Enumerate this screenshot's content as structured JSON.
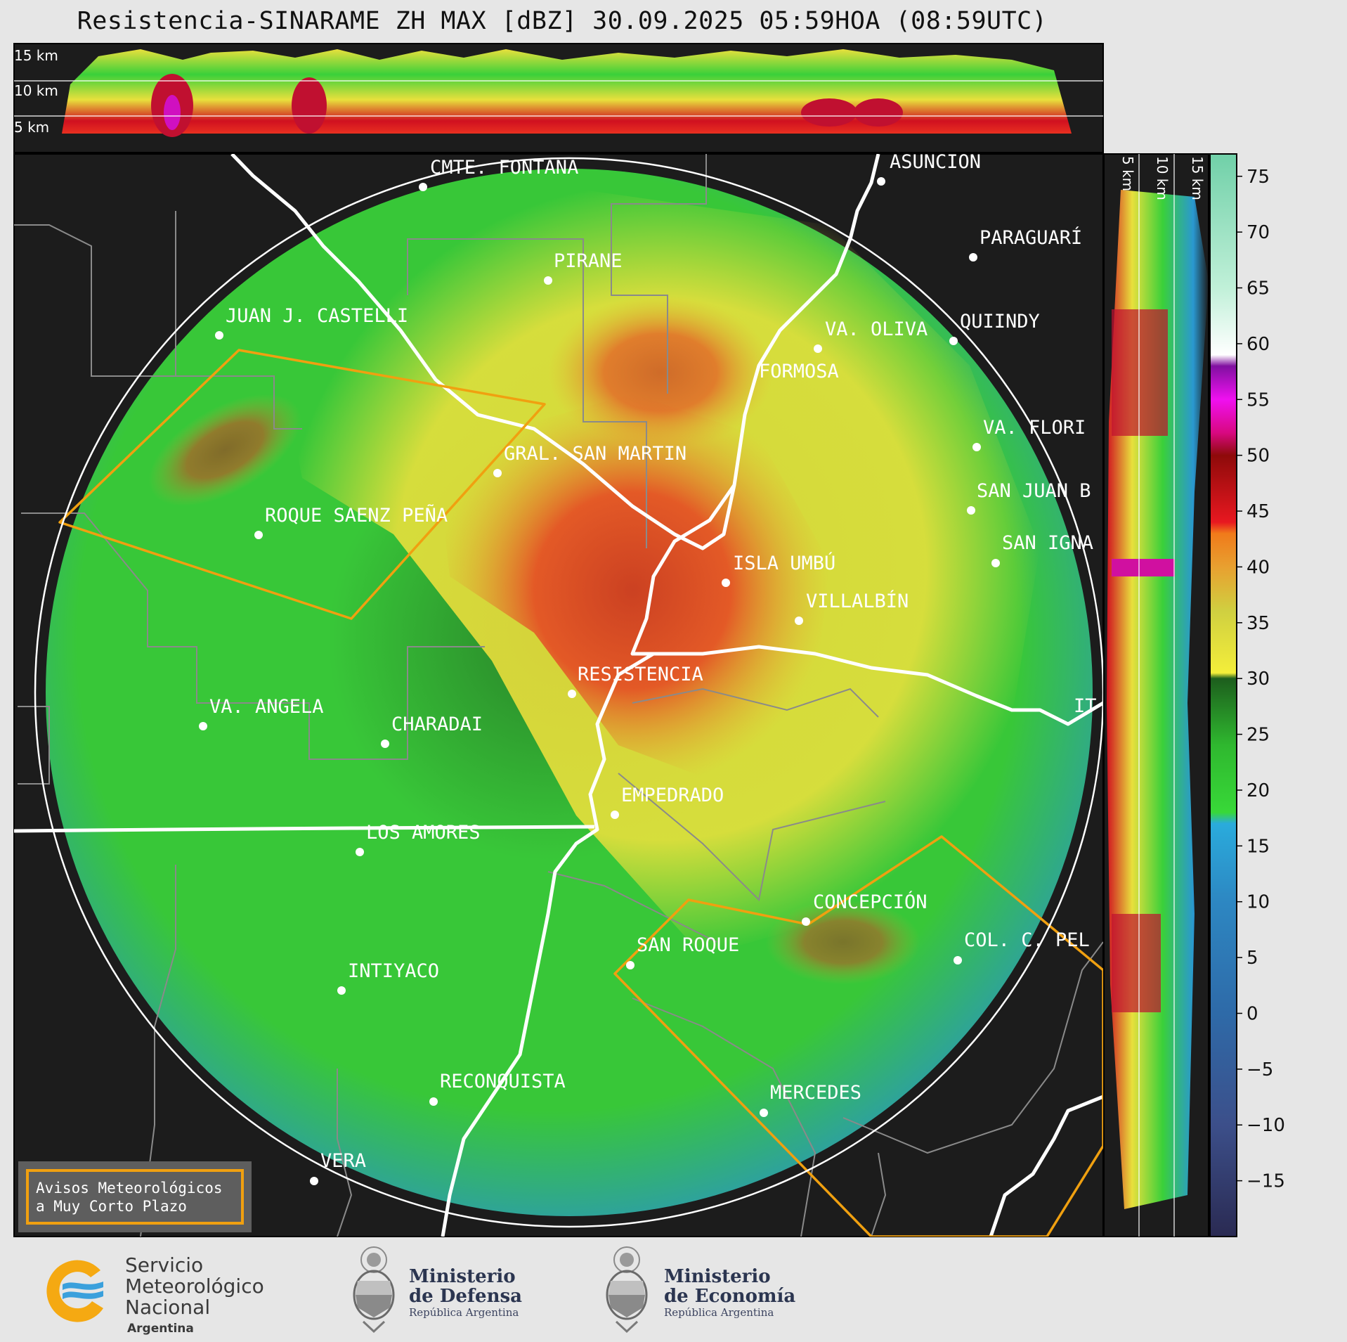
{
  "title": "Resistencia-SINARAME ZH MAX [dBZ] 30.09.2025 05:59HOA (08:59UTC)",
  "top_profile_labels": [
    "15 km",
    "10 km",
    "5 km"
  ],
  "side_profile_labels": [
    "5 km",
    "10 km",
    "15 km"
  ],
  "colorbar": {
    "ticks": [
      "75",
      "70",
      "65",
      "60",
      "55",
      "50",
      "45",
      "40",
      "35",
      "30",
      "25",
      "20",
      "15",
      "10",
      "5",
      "0",
      "−5",
      "−10",
      "−15"
    ],
    "min": -20,
    "max": 77,
    "stops": [
      {
        "v": -20,
        "c": "#2a2a52"
      },
      {
        "v": -10,
        "c": "#3c4f8a"
      },
      {
        "v": 0,
        "c": "#2e6aa8"
      },
      {
        "v": 10,
        "c": "#2d87c2"
      },
      {
        "v": 17,
        "c": "#2aabdc"
      },
      {
        "v": 18,
        "c": "#38d838"
      },
      {
        "v": 24,
        "c": "#2fb82f"
      },
      {
        "v": 30,
        "c": "#1d5e1d"
      },
      {
        "v": 30.5,
        "c": "#f4ee3a"
      },
      {
        "v": 36,
        "c": "#d0d040"
      },
      {
        "v": 40,
        "c": "#e8a030"
      },
      {
        "v": 43,
        "c": "#f07a1a"
      },
      {
        "v": 44,
        "c": "#e81820"
      },
      {
        "v": 50,
        "c": "#8e0a0a"
      },
      {
        "v": 52,
        "c": "#d80880"
      },
      {
        "v": 55,
        "c": "#f010f0"
      },
      {
        "v": 58,
        "c": "#8010a0"
      },
      {
        "v": 59,
        "c": "#ffffff"
      },
      {
        "v": 65,
        "c": "#c0f0d8"
      },
      {
        "v": 77,
        "c": "#70d0a8"
      }
    ]
  },
  "places": [
    {
      "name": "CMTE. FONTANA"
    },
    {
      "name": "ASUNCIÓN"
    },
    {
      "name": "PARAGUARÍ"
    },
    {
      "name": "PIRANE"
    },
    {
      "name": "JUAN J. CASTELLI"
    },
    {
      "name": "VA. OLIVA"
    },
    {
      "name": "QUIINDY"
    },
    {
      "name": "FORMOSA"
    },
    {
      "name": "VA. FLORI"
    },
    {
      "name": "GRAL. SAN MARTIN"
    },
    {
      "name": "SAN JUAN B"
    },
    {
      "name": "ROQUE SAENZ PEÑA"
    },
    {
      "name": "SAN IGNA"
    },
    {
      "name": "ISLA UMBÚ"
    },
    {
      "name": "VILLALBÍN"
    },
    {
      "name": "RESISTENCIA"
    },
    {
      "name": "IT"
    },
    {
      "name": "VA. ANGELA"
    },
    {
      "name": "CHARADAI"
    },
    {
      "name": "EMPEDRADO"
    },
    {
      "name": "LOS AMORES"
    },
    {
      "name": "CONCEPCIÓN"
    },
    {
      "name": "SAN ROQUE"
    },
    {
      "name": "COL. C. PEL"
    },
    {
      "name": "INTIYACO"
    },
    {
      "name": "RECONQUISTA"
    },
    {
      "name": "MERCEDES"
    },
    {
      "name": "VERA"
    }
  ],
  "notice": {
    "line1": "Avisos Meteorológicos",
    "line2": "a Muy Corto Plazo"
  },
  "logos": {
    "smn": {
      "line1": "Servicio",
      "line2": "Meteorológico",
      "line3": "Nacional",
      "sub": "Argentina"
    },
    "defensa": {
      "line1": "Ministerio",
      "line2": "de Defensa",
      "sub": "República Argentina"
    },
    "economia": {
      "line1": "Ministerio",
      "line2": "de Economía",
      "sub": "República Argentina"
    }
  }
}
